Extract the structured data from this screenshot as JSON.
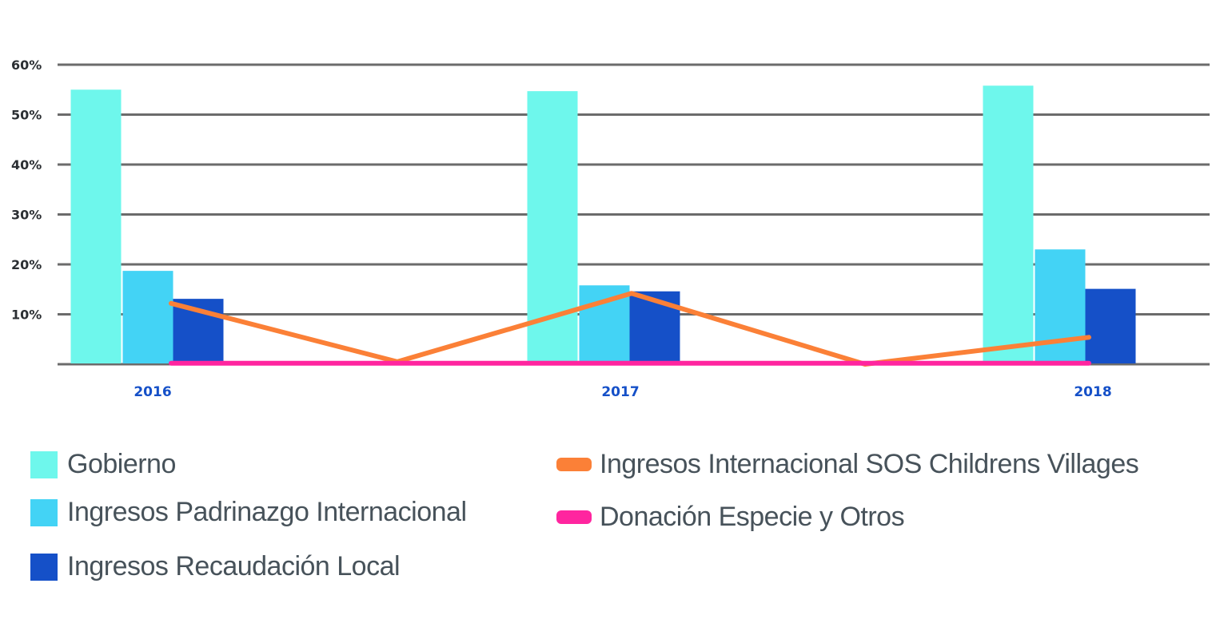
{
  "chart_data": {
    "type": "bar",
    "title": "",
    "xlabel": "",
    "ylabel": "",
    "ylim": [
      0,
      60
    ],
    "yticks": [
      {
        "value": 10,
        "label": "10%"
      },
      {
        "value": 20,
        "label": "20%"
      },
      {
        "value": 30,
        "label": "30%"
      },
      {
        "value": 40,
        "label": "40%"
      },
      {
        "value": 50,
        "label": "50%"
      },
      {
        "value": 60,
        "label": "60%"
      }
    ],
    "grid": true,
    "categories": [
      "2016",
      "2017",
      "2018"
    ],
    "bar_series": [
      {
        "name": "Gobierno",
        "color": "#6ef7ec",
        "values": [
          55.0,
          54.7,
          55.8
        ]
      },
      {
        "name": "Ingresos Padrinazgo Internacional",
        "color": "#43d3f5",
        "values": [
          18.7,
          15.8,
          23.0
        ]
      },
      {
        "name": "Ingresos Recaudación Local",
        "color": "#1550c8",
        "values": [
          13.1,
          14.6,
          15.1
        ]
      }
    ],
    "line_series": [
      {
        "name": "Ingresos Internacional SOS Childrens Villages",
        "color": "#fb8037",
        "x": [
          "2016",
          "2016-2017",
          "2017",
          "2017-2018",
          "2018"
        ],
        "values": [
          12.2,
          0.5,
          14.2,
          0.0,
          5.4
        ]
      },
      {
        "name": "Donación Especie y Otros",
        "color": "#ff259f",
        "x": [
          "2016",
          "2016-2017",
          "2017",
          "2017-2018",
          "2018"
        ],
        "values": [
          0.2,
          0.2,
          0.2,
          0.2,
          0.2
        ]
      }
    ],
    "legend_placement": "bottom"
  },
  "legend": {
    "items": [
      {
        "label": "Gobierno",
        "kind": "box",
        "color": "#6ef7ec"
      },
      {
        "label": "Ingresos Padrinazgo Internacional",
        "kind": "box",
        "color": "#43d3f5"
      },
      {
        "label": "Ingresos Recaudación Local",
        "kind": "box",
        "color": "#1550c8"
      },
      {
        "label": "Ingresos Internacional SOS Childrens Villages",
        "kind": "line",
        "color": "#fb8037"
      },
      {
        "label": "Donación Especie y Otros",
        "kind": "line",
        "color": "#ff259f"
      }
    ]
  }
}
